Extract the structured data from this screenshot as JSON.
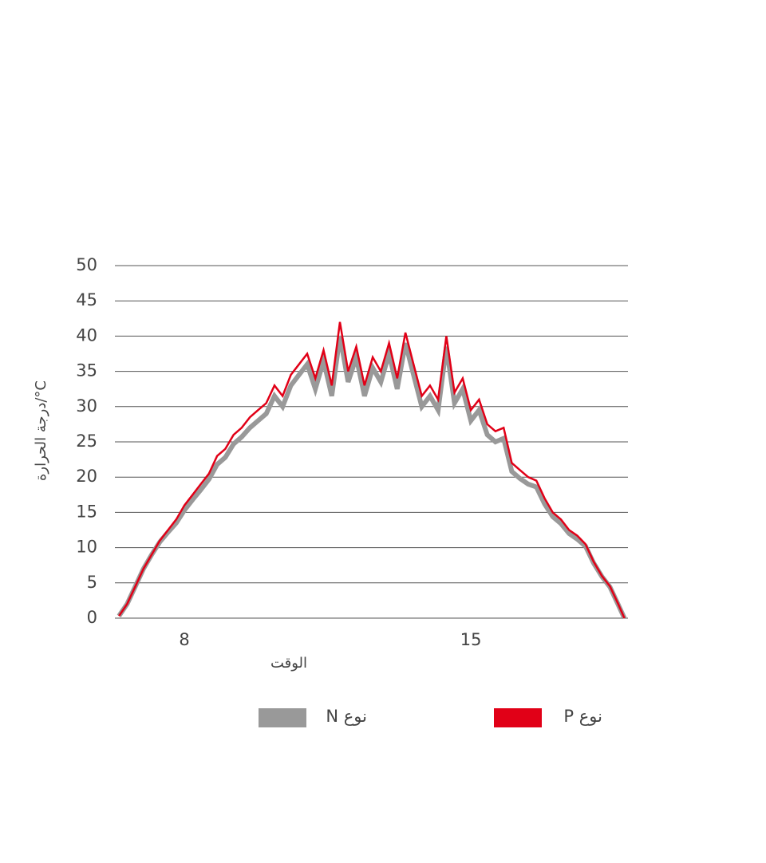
{
  "chart_data": {
    "type": "line",
    "y_label": "درجة الحرارة/°C",
    "x_label": "الوقت",
    "x": [
      6.4,
      6.6,
      6.8,
      7.0,
      7.2,
      7.4,
      7.6,
      7.8,
      8.0,
      8.2,
      8.4,
      8.6,
      8.8,
      9.0,
      9.2,
      9.4,
      9.6,
      9.8,
      10.0,
      10.2,
      10.4,
      10.6,
      10.8,
      11.0,
      11.2,
      11.4,
      11.6,
      11.8,
      12.0,
      12.2,
      12.4,
      12.6,
      12.8,
      13.0,
      13.2,
      13.4,
      13.6,
      13.8,
      14.0,
      14.2,
      14.4,
      14.6,
      14.8,
      15.0,
      15.2,
      15.4,
      15.6,
      15.8,
      16.0,
      16.2,
      16.4,
      16.6,
      16.8,
      17.0,
      17.2,
      17.4,
      17.6,
      17.8,
      18.0,
      18.2,
      18.4,
      18.6,
      18.75
    ],
    "series": [
      {
        "name": "نوع N",
        "color": "#999999",
        "values": [
          0.3,
          2,
          4.5,
          7,
          9,
          10.8,
          12.2,
          13.5,
          15.3,
          16.8,
          18.2,
          19.7,
          21.8,
          22.8,
          24.7,
          25.7,
          27,
          28,
          29,
          31.5,
          30,
          33,
          34.5,
          36,
          32.5,
          36.5,
          31.5,
          40,
          33.5,
          37,
          31.5,
          35.5,
          33.5,
          37.5,
          32.5,
          39,
          34.5,
          30,
          31.5,
          29.5,
          38.5,
          30.5,
          32.5,
          28,
          29.5,
          26,
          25,
          25.5,
          20.8,
          19.8,
          19,
          18.6,
          16.2,
          14.4,
          13.4,
          12,
          11.2,
          10.2,
          7.8,
          5.9,
          4.4,
          1.9,
          0
        ]
      },
      {
        "name": "نوع P",
        "color": "#e10017",
        "values": [
          0.3,
          2,
          4.5,
          7,
          9,
          11,
          12.5,
          14,
          16,
          17.5,
          19,
          20.5,
          23,
          24,
          26,
          27,
          28.5,
          29.5,
          30.5,
          33,
          31.5,
          34.5,
          36,
          37.5,
          34,
          38,
          33,
          42,
          35,
          38.5,
          33,
          37,
          35,
          39,
          34,
          40.5,
          36,
          31.5,
          33,
          31,
          40,
          32,
          34,
          29.5,
          31,
          27.5,
          26.5,
          27,
          22,
          21,
          20,
          19.5,
          17,
          15,
          14,
          12.5,
          11.7,
          10.5,
          8,
          6,
          4.5,
          2,
          0
        ]
      }
    ],
    "xlim": [
      6.36,
      18.76
    ],
    "xticks": [
      8,
      15
    ],
    "ylim": [
      0,
      50
    ],
    "yticks": [
      0,
      5,
      10,
      15,
      20,
      25,
      30,
      35,
      40,
      45,
      50
    ],
    "grid": true
  }
}
